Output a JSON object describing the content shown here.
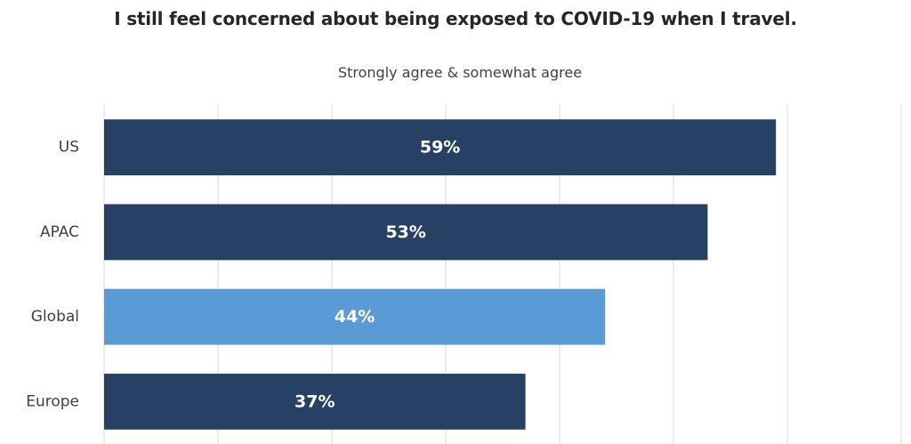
{
  "chart_data": {
    "type": "bar",
    "orientation": "horizontal",
    "title": "I still feel concerned about being exposed to COVID-19 when I travel.",
    "subtitle": "Strongly agree & somewhat agree",
    "categories": [
      "US",
      "APAC",
      "Global",
      "Europe"
    ],
    "values": [
      59,
      53,
      44,
      37
    ],
    "value_labels": [
      "59%",
      "53%",
      "44%",
      "37%"
    ],
    "xlim": [
      0,
      70
    ],
    "grid": true,
    "legend": "none",
    "colors": {
      "default": "#264163",
      "highlight": "#5b9bd5",
      "highlight_category": "Global",
      "gridline": "#d9d9d9",
      "value_text": "#ffffff"
    }
  }
}
